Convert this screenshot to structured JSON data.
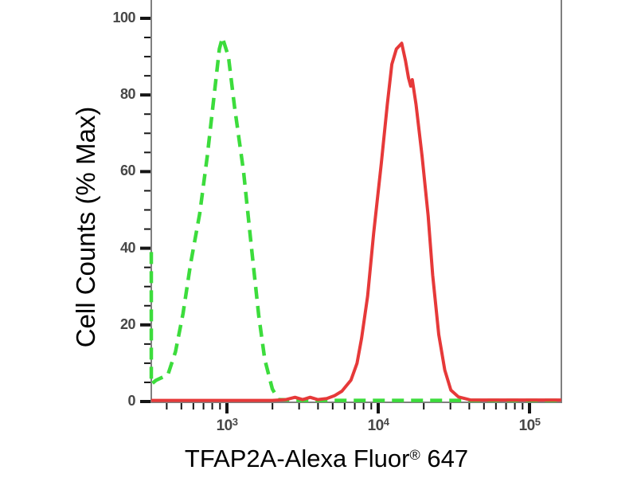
{
  "figure": {
    "kind": "flow-cytometry-overlay-histogram",
    "background": "#ffffff"
  },
  "chart_data": {
    "type": "line",
    "title": "",
    "xlabel": "TFAP2A-Alexa Fluor® 647",
    "xlabel_parts": {
      "main": "TFAP2A-Alexa Fluor",
      "sup": "®",
      "end": " 647"
    },
    "ylabel": "Cell Counts (% Max)",
    "x_scale": "log10",
    "x_range_log10": [
      2.5,
      5.21
    ],
    "ylim": [
      0,
      100
    ],
    "x_tick_base": "10",
    "x_major_tick_exponents": [
      3,
      4,
      5
    ],
    "y_major_ticks": [
      0,
      20,
      40,
      60,
      80,
      100
    ],
    "y_minor_tick_step": 5,
    "grid": false,
    "legend": "none",
    "colors": {
      "green_dashed": "#3cdc3c",
      "red_solid": "#e63939",
      "axis_line": "#7f7f7f",
      "tick": "#151515",
      "tick_label": "#474747",
      "axis_title": "#000000"
    },
    "series": [
      {
        "name": "unstained-control-green-dashed",
        "style": "dashed",
        "color_key": "green_dashed",
        "peak_log10x": 2.97,
        "peak_pct": 95,
        "points_log10x_pct": [
          [
            2.5,
            39
          ],
          [
            2.5,
            4.5
          ],
          [
            2.53,
            5.5
          ],
          [
            2.61,
            7
          ],
          [
            2.66,
            13
          ],
          [
            2.71,
            23
          ],
          [
            2.76,
            36
          ],
          [
            2.82,
            49
          ],
          [
            2.87,
            64
          ],
          [
            2.91,
            78
          ],
          [
            2.95,
            92
          ],
          [
            2.97,
            95
          ],
          [
            3.01,
            90
          ],
          [
            3.05,
            77
          ],
          [
            3.11,
            60
          ],
          [
            3.16,
            41
          ],
          [
            3.21,
            22.5
          ],
          [
            3.25,
            11
          ],
          [
            3.3,
            3.3
          ],
          [
            3.34,
            0.5
          ],
          [
            3.5,
            0.3
          ],
          [
            4.0,
            0.3
          ],
          [
            4.5,
            0.3
          ],
          [
            5.0,
            0.3
          ],
          [
            5.21,
            0.3
          ]
        ]
      },
      {
        "name": "tfap2a-alexa647-stained-red-solid",
        "style": "solid",
        "color_key": "red_solid",
        "peak_log10x": 4.155,
        "peak_pct": 93.5,
        "points_log10x_pct": [
          [
            2.5,
            0.3
          ],
          [
            3.0,
            0.3
          ],
          [
            3.3,
            0.3
          ],
          [
            3.39,
            0.5
          ],
          [
            3.45,
            1.1
          ],
          [
            3.5,
            0.5
          ],
          [
            3.55,
            1.1
          ],
          [
            3.6,
            0.5
          ],
          [
            3.66,
            0.8
          ],
          [
            3.71,
            1.5
          ],
          [
            3.76,
            2.7
          ],
          [
            3.82,
            5.6
          ],
          [
            3.86,
            10
          ],
          [
            3.89,
            16.5
          ],
          [
            3.93,
            27.5
          ],
          [
            3.97,
            44
          ],
          [
            4.02,
            62
          ],
          [
            4.06,
            77.5
          ],
          [
            4.09,
            88
          ],
          [
            4.12,
            92
          ],
          [
            4.155,
            93.5
          ],
          [
            4.18,
            89
          ],
          [
            4.2,
            84.5
          ],
          [
            4.215,
            82.3
          ],
          [
            4.225,
            84
          ],
          [
            4.25,
            77.5
          ],
          [
            4.29,
            64
          ],
          [
            4.33,
            48.5
          ],
          [
            4.36,
            33
          ],
          [
            4.4,
            17.5
          ],
          [
            4.44,
            8.2
          ],
          [
            4.48,
            3
          ],
          [
            4.53,
            1.2
          ],
          [
            4.61,
            0.4
          ],
          [
            5.0,
            0.4
          ],
          [
            5.21,
            0.4
          ]
        ]
      }
    ]
  }
}
